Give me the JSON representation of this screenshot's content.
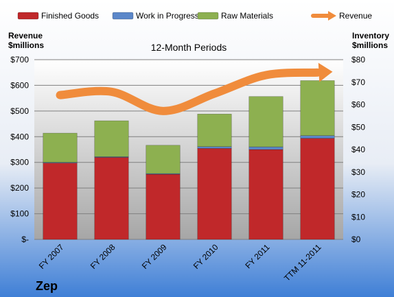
{
  "chart_data": {
    "type": "bar",
    "title": "12-Month Periods",
    "company": "Zep",
    "categories": [
      "FY 2007",
      "FY 2008",
      "FY 2009",
      "FY 2010",
      "FY 2011",
      "TTM 11-2011"
    ],
    "series": [
      {
        "name": "Finished Goods",
        "axis": "right",
        "stacked": true,
        "color": "#c0282a",
        "values": [
          34.0,
          36.5,
          29.0,
          40.5,
          40.0,
          45.0
        ]
      },
      {
        "name": "Work in Progress",
        "axis": "right",
        "stacked": true,
        "color": "#5b87c9",
        "values": [
          0.3,
          0.3,
          0.3,
          0.8,
          1.2,
          1.2
        ]
      },
      {
        "name": "Raw Materials",
        "axis": "right",
        "stacked": true,
        "color": "#8db050",
        "values": [
          13.0,
          16.0,
          12.6,
          14.5,
          22.4,
          24.5
        ]
      },
      {
        "name": "Revenue",
        "axis": "left",
        "type": "line",
        "color": "#f08c3c",
        "values": [
          562,
          575,
          500,
          568,
          640,
          650
        ]
      }
    ],
    "y_left": {
      "label": "Revenue $millions",
      "min": 0,
      "max": 700,
      "step": 100,
      "tick_labels": [
        "$-",
        "$100",
        "$200",
        "$300",
        "$400",
        "$500",
        "$600",
        "$700"
      ]
    },
    "y_right": {
      "label": "Inventory $millions",
      "min": 0,
      "max": 80,
      "step": 10,
      "tick_labels": [
        "$0",
        "$10",
        "$20",
        "$30",
        "$40",
        "$50",
        "$60",
        "$70",
        "$80"
      ]
    },
    "grid": true,
    "legend_position": "top"
  }
}
